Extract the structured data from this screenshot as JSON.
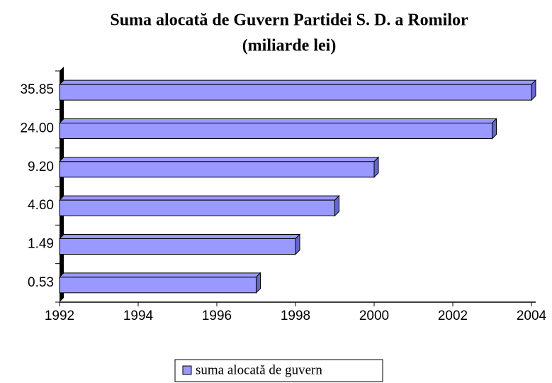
{
  "chart_data": {
    "type": "bar",
    "orientation": "horizontal",
    "title": "Suma alocată de Guvern Partidei S. D. a Romilor",
    "subtitle": "(miliarde lei)",
    "categories": [
      "0.53",
      "1.49",
      "4.60",
      "9.20",
      "24.00",
      "35.85"
    ],
    "series": [
      {
        "name": "suma alocată de guvern",
        "color": "#9999ff",
        "values": [
          1997,
          1998,
          1999,
          2000,
          2003,
          2004
        ]
      }
    ],
    "xlim": [
      1992,
      2004
    ],
    "xticks": [
      1992,
      1994,
      1996,
      1998,
      2000,
      2002,
      2004
    ],
    "legend": "bottom"
  }
}
